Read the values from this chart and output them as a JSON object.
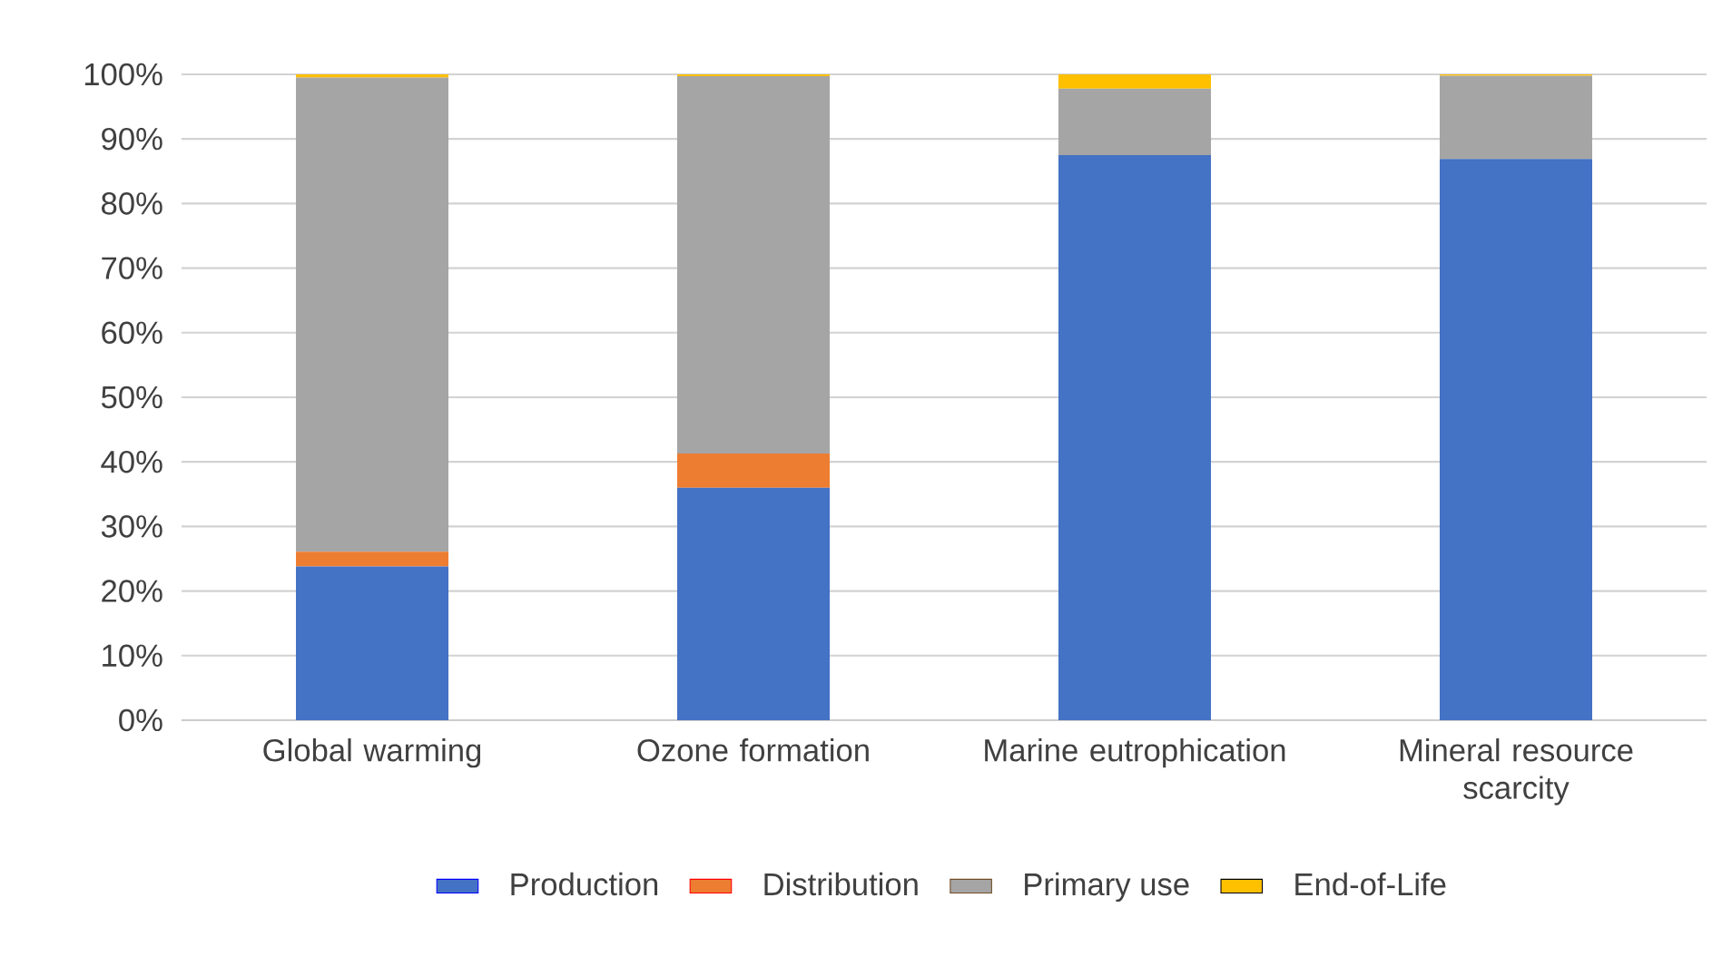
{
  "chart_data": {
    "type": "bar",
    "stacked": true,
    "categories": [
      "Global warming",
      "Ozone formation",
      "Marine eutrophication",
      "Mineral resource scarcity"
    ],
    "series": [
      {
        "name": "Production",
        "color": "#4472c4",
        "values": [
          23.8,
          36.0,
          87.5,
          86.9
        ]
      },
      {
        "name": "Distribution",
        "color": "#ed7d31",
        "values": [
          2.3,
          5.3,
          0,
          0
        ]
      },
      {
        "name": "Primary use",
        "color": "#a5a5a5",
        "values": [
          73.4,
          58.4,
          10.3,
          12.9
        ]
      },
      {
        "name": "End-of-Life",
        "color": "#ffc000",
        "values": [
          0.5,
          0.3,
          2.2,
          0.2
        ]
      }
    ],
    "ylim": [
      0,
      100
    ],
    "yticks": [
      {
        "value": 0,
        "label": "0%"
      },
      {
        "value": 10,
        "label": "10%"
      },
      {
        "value": 20,
        "label": "20%"
      },
      {
        "value": 30,
        "label": "30%"
      },
      {
        "value": 40,
        "label": "40%"
      },
      {
        "value": 50,
        "label": "50%"
      },
      {
        "value": 60,
        "label": "60%"
      },
      {
        "value": 70,
        "label": "70%"
      },
      {
        "value": 80,
        "label": "80%"
      },
      {
        "value": 90,
        "label": "90%"
      },
      {
        "value": 100,
        "label": "100%"
      }
    ],
    "grid": "y",
    "legend": "bottom"
  }
}
